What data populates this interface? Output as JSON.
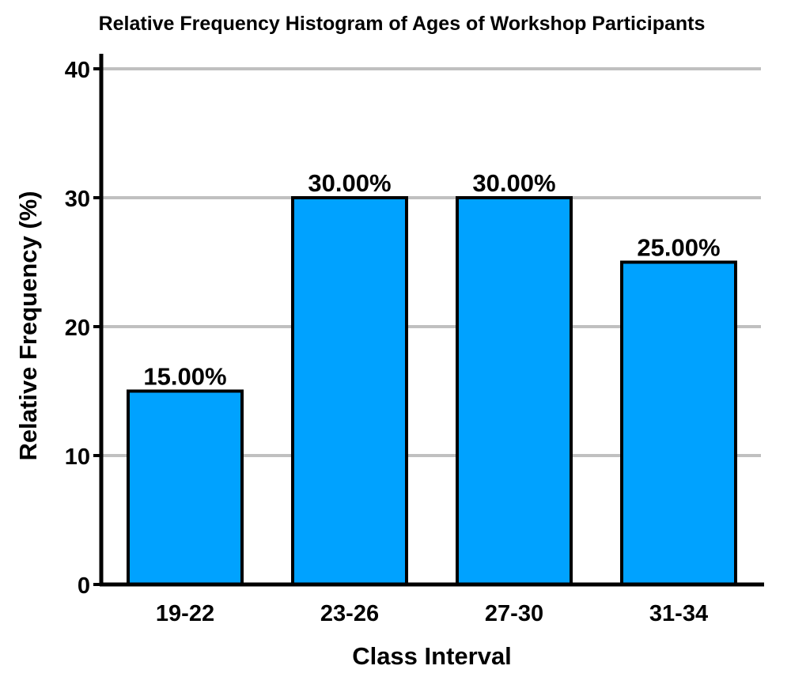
{
  "chart_data": {
    "type": "bar",
    "title": "Relative Frequency Histogram of Ages of Workshop Participants",
    "xlabel": "Class Interval",
    "ylabel": "Relative Frequency (%)",
    "categories": [
      "19-22",
      "23-26",
      "27-30",
      "31-34"
    ],
    "values": [
      15,
      30,
      30,
      25
    ],
    "data_labels": [
      "15.00%",
      "30.00%",
      "30.00%",
      "25.00%"
    ],
    "ylim": [
      0,
      40
    ],
    "yticks": [
      0,
      10,
      20,
      30,
      40
    ],
    "ytick_labels": [
      "0",
      "10",
      "20",
      "30",
      "40"
    ],
    "grid": true,
    "bar_color": "#00a2ff",
    "grid_color": "#c0c0c0",
    "axis_color": "#000000"
  }
}
